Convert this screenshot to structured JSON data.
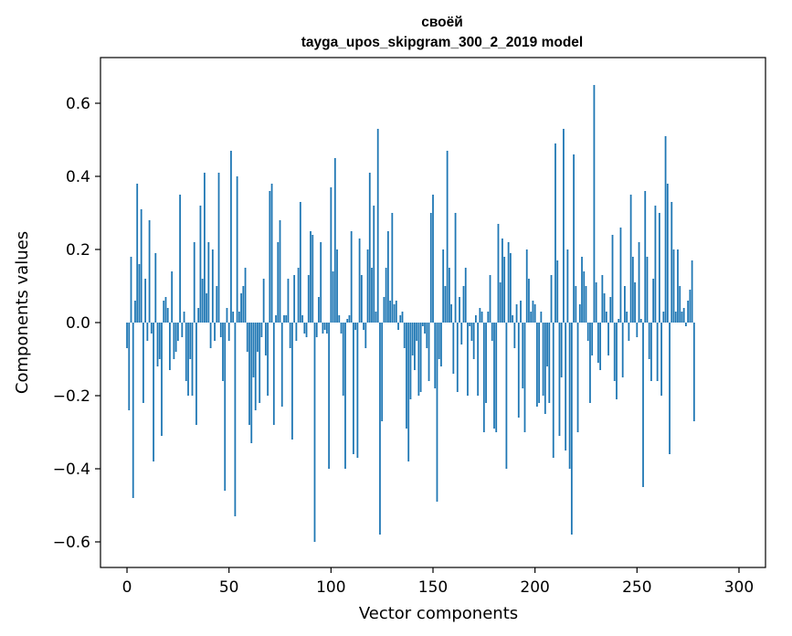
{
  "chart_data": {
    "type": "bar",
    "title_lines": [
      "своёй",
      "tayga_upos_skipgram_300_2_2019 model"
    ],
    "xlabel": "Vector components",
    "ylabel": "Components values",
    "xlim": [
      -13,
      313
    ],
    "ylim": [
      -0.67,
      0.725
    ],
    "xticks": [
      0,
      50,
      100,
      150,
      200,
      250,
      300
    ],
    "yticks": [
      -0.6,
      -0.4,
      -0.2,
      0.0,
      0.2,
      0.4,
      0.6
    ],
    "ytick_labels": [
      "−0.6",
      "−0.4",
      "−0.2",
      "0.0",
      "0.2",
      "0.4",
      "0.6"
    ],
    "grid": false,
    "bar_color": "#1f77b4",
    "values": [
      -0.07,
      -0.24,
      0.18,
      -0.48,
      0.06,
      0.38,
      0.16,
      0.31,
      -0.22,
      0.12,
      -0.05,
      0.28,
      -0.03,
      -0.38,
      0.19,
      -0.12,
      -0.1,
      -0.31,
      0.06,
      0.07,
      0.04,
      -0.13,
      0.14,
      -0.1,
      -0.08,
      -0.05,
      0.35,
      -0.04,
      0.03,
      -0.16,
      -0.2,
      -0.1,
      -0.2,
      0.22,
      -0.28,
      0.04,
      0.32,
      0.12,
      0.41,
      0.08,
      0.22,
      -0.07,
      0.2,
      -0.05,
      0.1,
      0.41,
      -0.04,
      -0.16,
      -0.46,
      0.04,
      -0.05,
      0.47,
      0.03,
      -0.53,
      0.4,
      0.03,
      0.08,
      0.1,
      0.15,
      -0.08,
      -0.28,
      -0.33,
      -0.15,
      -0.24,
      -0.08,
      -0.22,
      -0.04,
      0.12,
      -0.09,
      -0.2,
      0.36,
      0.38,
      -0.28,
      0.02,
      0.22,
      0.28,
      -0.23,
      0.02,
      0.02,
      0.12,
      -0.07,
      -0.32,
      0.13,
      -0.05,
      0.15,
      0.33,
      0.02,
      -0.03,
      -0.04,
      0.13,
      0.25,
      0.24,
      -0.6,
      -0.04,
      0.07,
      0.22,
      -0.03,
      -0.02,
      -0.03,
      -0.4,
      0.37,
      0.14,
      0.45,
      0.2,
      0.02,
      -0.03,
      -0.2,
      -0.4,
      0.01,
      0.02,
      0.25,
      -0.36,
      -0.02,
      -0.37,
      0.23,
      0.13,
      -0.02,
      -0.07,
      0.2,
      0.41,
      0.15,
      0.32,
      0.03,
      0.53,
      -0.58,
      -0.27,
      0.07,
      0.15,
      0.25,
      0.06,
      0.3,
      0.05,
      0.06,
      -0.02,
      0.02,
      0.03,
      -0.07,
      -0.29,
      -0.38,
      -0.21,
      -0.09,
      -0.13,
      -0.05,
      -0.2,
      -0.19,
      -0.01,
      -0.03,
      -0.07,
      -0.16,
      0.3,
      0.35,
      -0.18,
      -0.49,
      -0.1,
      -0.12,
      0.2,
      0.1,
      0.47,
      0.15,
      0.05,
      -0.14,
      0.3,
      -0.19,
      0.07,
      -0.06,
      0.1,
      0.15,
      -0.2,
      -0.01,
      -0.05,
      -0.1,
      0.02,
      -0.2,
      0.04,
      0.03,
      -0.3,
      -0.22,
      0.03,
      0.13,
      -0.05,
      -0.29,
      -0.3,
      0.27,
      0.11,
      0.23,
      0.18,
      -0.4,
      0.22,
      0.19,
      0.02,
      -0.07,
      0.05,
      -0.26,
      0.06,
      -0.18,
      -0.3,
      0.2,
      0.12,
      0.03,
      0.06,
      0.05,
      -0.23,
      -0.22,
      0.03,
      -0.2,
      -0.25,
      -0.12,
      -0.22,
      0.13,
      -0.37,
      0.49,
      0.17,
      -0.31,
      -0.15,
      0.53,
      -0.35,
      0.2,
      -0.4,
      -0.58,
      0.46,
      0.1,
      -0.3,
      0.05,
      0.18,
      0.14,
      0.1,
      -0.05,
      -0.22,
      -0.09,
      0.65,
      0.11,
      -0.11,
      -0.13,
      0.13,
      0.08,
      0.03,
      -0.09,
      0.07,
      0.24,
      -0.16,
      -0.21,
      0.01,
      0.26,
      -0.15,
      0.1,
      0.03,
      -0.05,
      0.35,
      0.18,
      0.11,
      -0.04,
      0.22,
      0.01,
      -0.45,
      0.36,
      0.18,
      -0.1,
      -0.16,
      0.12,
      0.32,
      -0.16,
      0.3,
      -0.2,
      0.03,
      0.51,
      0.38,
      -0.36,
      0.33,
      0.2,
      0.03,
      0.2,
      0.1,
      0.03,
      0.04,
      -0.01,
      0.06,
      0.09,
      0.17,
      -0.27
    ]
  }
}
